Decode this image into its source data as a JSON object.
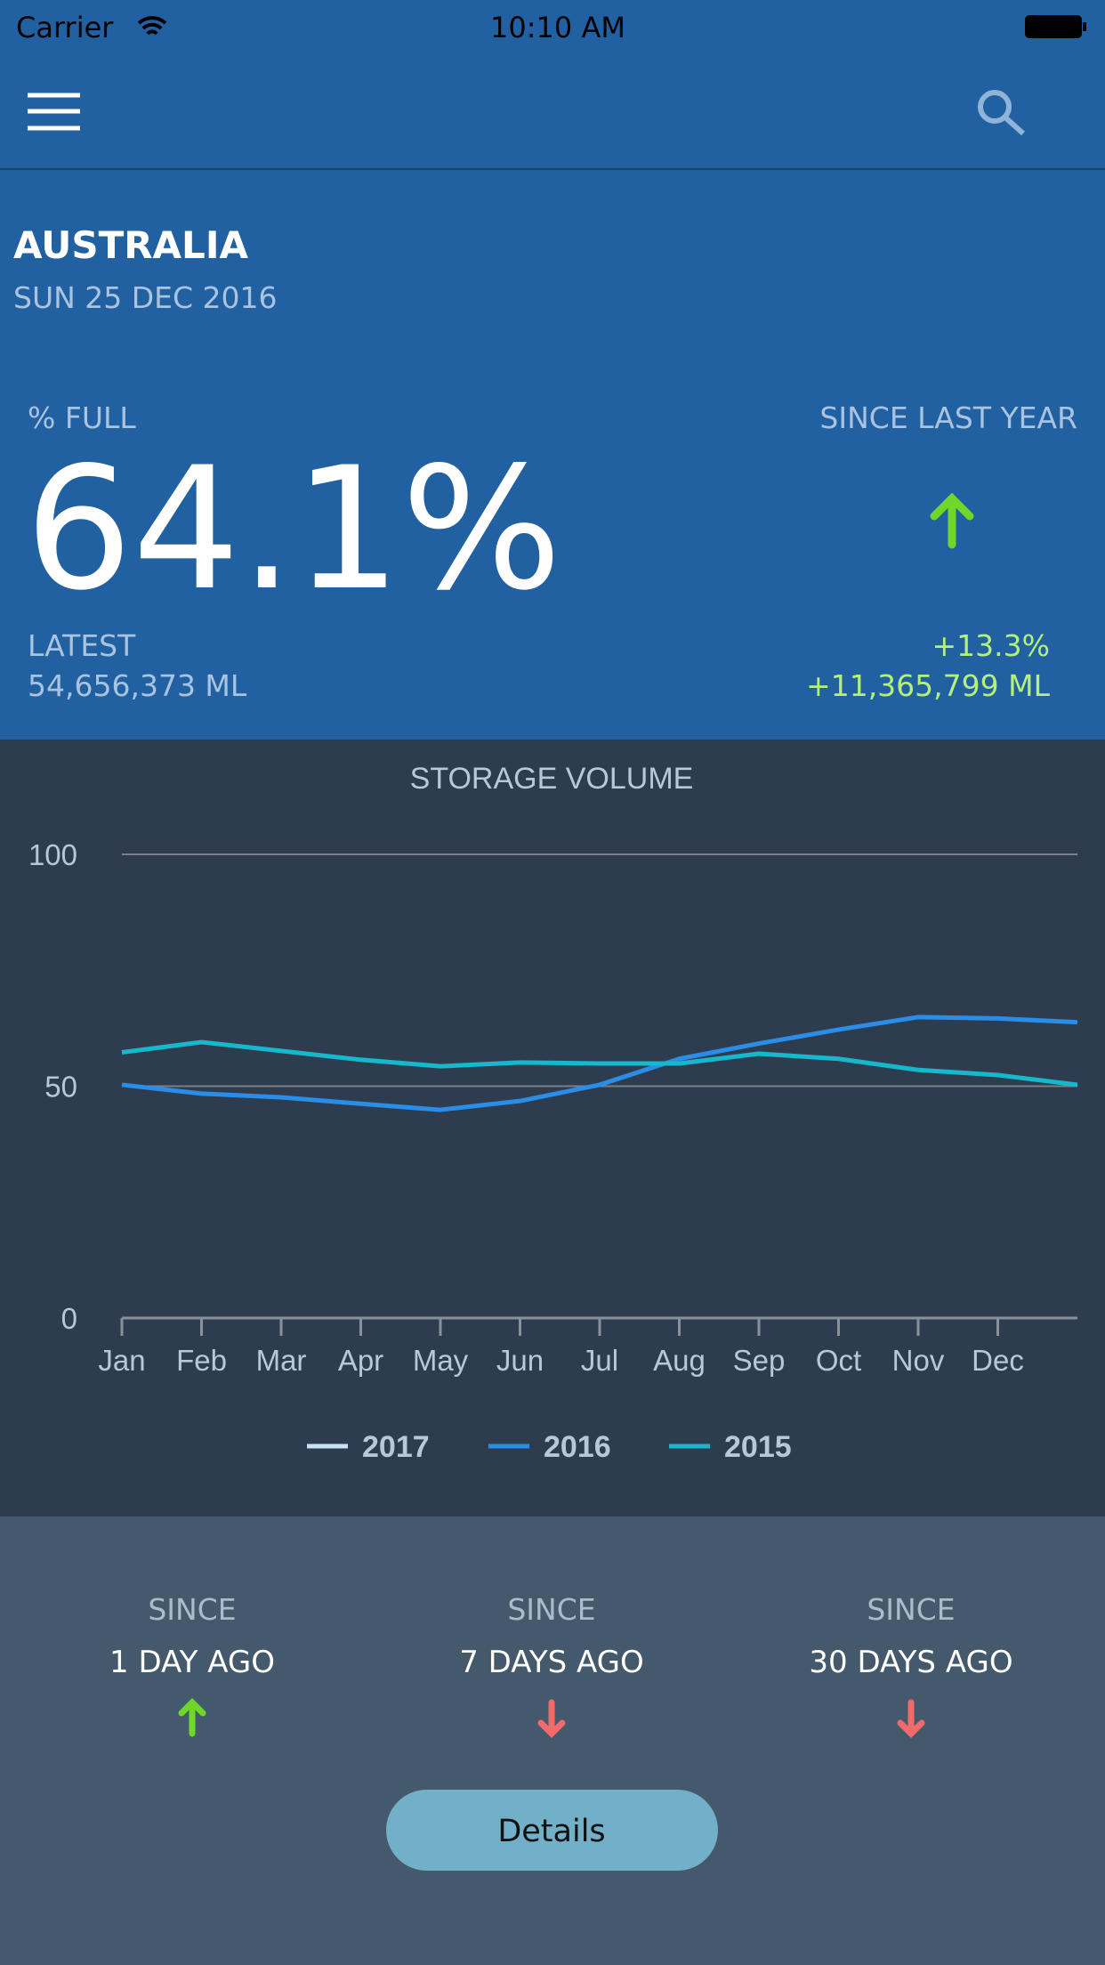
{
  "status_bar": {
    "carrier": "Carrier",
    "time": "10:10 AM"
  },
  "location": {
    "name": "AUSTRALIA",
    "date": "SUN 25 DEC 2016"
  },
  "summary": {
    "full_label": "% FULL",
    "full_value": "64.1%",
    "since_label": "SINCE LAST YEAR",
    "latest_label": "LATEST",
    "latest_value": "54,656,373 ML",
    "change_percent": "+13.3%",
    "change_volume": "+11,365,799 ML"
  },
  "chart_data": {
    "type": "line",
    "title": "STORAGE VOLUME",
    "categories": [
      "Jan",
      "Feb",
      "Mar",
      "Apr",
      "May",
      "Jun",
      "Jul",
      "Aug",
      "Sep",
      "Oct",
      "Nov",
      "Dec",
      null
    ],
    "series": [
      {
        "name": "2017",
        "color": "#c8e4f8",
        "values": [
          null,
          null,
          null,
          null,
          null,
          null,
          null,
          null,
          null,
          null,
          null,
          null,
          null
        ]
      },
      {
        "name": "2016",
        "color": "#2a8de8",
        "values": [
          50.3,
          48.4,
          47.6,
          46.2,
          44.9,
          46.8,
          50.3,
          55.9,
          59.2,
          62.2,
          64.9,
          64.6,
          63.8
        ]
      },
      {
        "name": "2015",
        "color": "#17b8cc",
        "values": [
          57.3,
          59.5,
          57.6,
          55.7,
          54.3,
          55.1,
          54.9,
          54.9,
          57.0,
          55.9,
          53.5,
          52.4,
          50.3
        ]
      }
    ],
    "ylim": [
      0,
      100
    ],
    "yticks": [
      0,
      50,
      100
    ],
    "grid": true
  },
  "since": [
    {
      "label": "SINCE",
      "period": "1 DAY AGO"
    },
    {
      "label": "SINCE",
      "period": "7 DAYS AGO"
    },
    {
      "label": "SINCE",
      "period": "30 DAYS AGO"
    }
  ],
  "button": "Details"
}
